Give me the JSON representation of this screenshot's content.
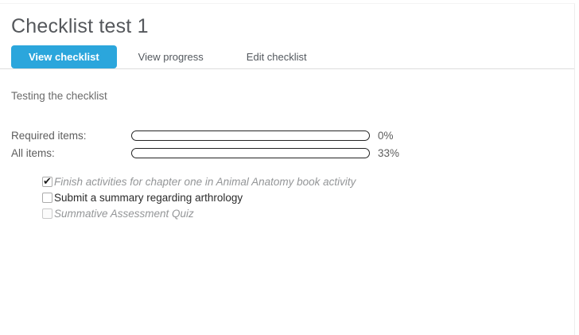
{
  "page": {
    "title": "Checklist test 1",
    "intro": "Testing the checklist"
  },
  "tabs": [
    {
      "label": "View checklist",
      "active": true
    },
    {
      "label": "View progress",
      "active": false
    },
    {
      "label": "Edit checklist",
      "active": false
    }
  ],
  "progress": {
    "rows": [
      {
        "label": "Required items:",
        "percent": 0,
        "percent_label": "0%"
      },
      {
        "label": "All items:",
        "percent": 33,
        "percent_label": "33%"
      }
    ]
  },
  "checklist": {
    "items": [
      {
        "label": "Finish activities for chapter one in Animal Anatomy book activity",
        "checked": true,
        "disabled": false,
        "italic": true
      },
      {
        "label": "Submit a summary regarding arthrology",
        "checked": false,
        "disabled": false,
        "italic": false
      },
      {
        "label": "Summative Assessment Quiz",
        "checked": false,
        "disabled": true,
        "italic": true
      }
    ]
  },
  "colors": {
    "accent_blue": "#2ba6dc",
    "progress_green": "#58ce47",
    "tab_border": "#dddddd",
    "bar_border": "#242424"
  }
}
